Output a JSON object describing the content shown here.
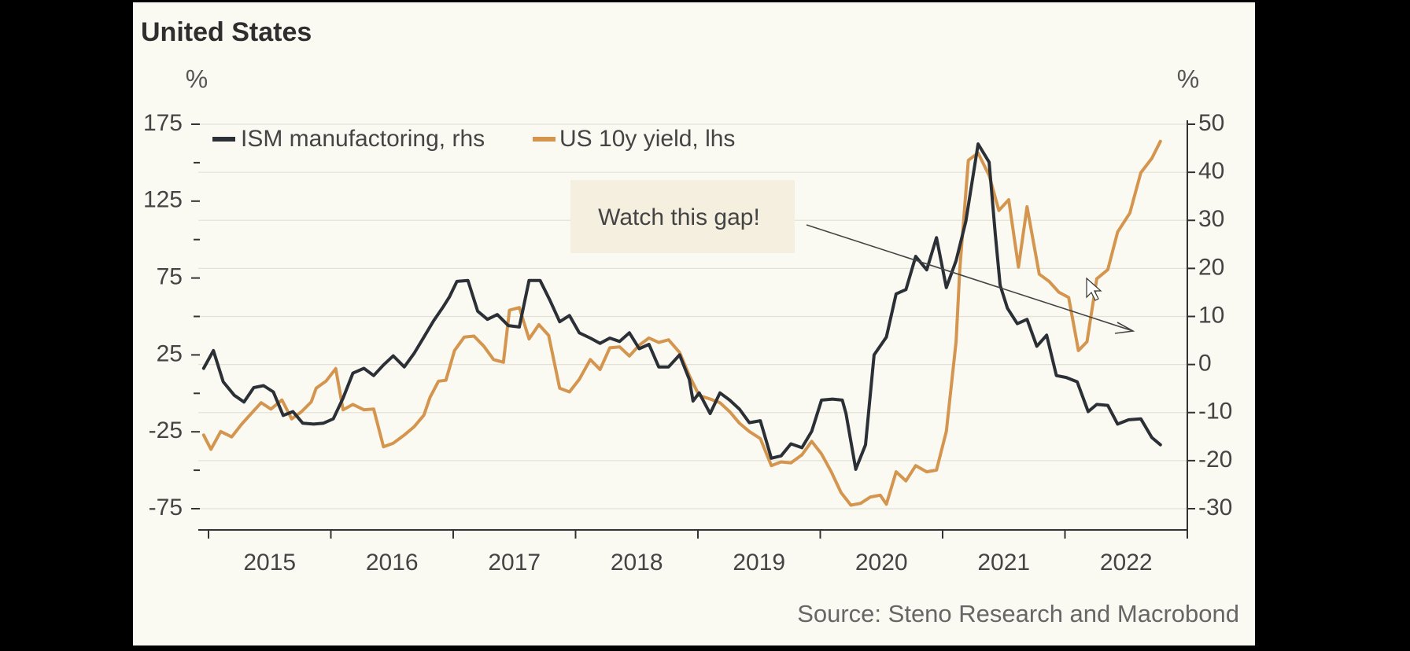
{
  "chart_data": {
    "type": "line",
    "title": "United States",
    "ylabel": "%",
    "y2label": "%",
    "annotation": "Watch this gap!",
    "source": "Source: Steno Research and Macrobond",
    "xlim": [
      2015,
      2023
    ],
    "xticks": [
      2015,
      2016,
      2017,
      2018,
      2019,
      2020,
      2021,
      2022,
      2023
    ],
    "xtick_labels": [
      "2015",
      "2016",
      "2017",
      "2018",
      "2019",
      "2020",
      "2021",
      "2022"
    ],
    "ylim": [
      -75,
      175
    ],
    "yticks": [
      -75,
      -25,
      25,
      75,
      125,
      175
    ],
    "yminorticks": [
      -50,
      0,
      50,
      100,
      150
    ],
    "y2lim": [
      -30,
      50
    ],
    "y2ticks": [
      -30,
      -20,
      -10,
      0,
      10,
      20,
      30,
      40,
      50
    ],
    "grid": "y2",
    "series": [
      {
        "name": "ISM manufactoring, rhs",
        "color": "#2b2f36",
        "axis": "y2",
        "x": [
          2014.96,
          2015.04,
          2015.12,
          2015.21,
          2015.29,
          2015.37,
          2015.45,
          2015.53,
          2015.61,
          2015.69,
          2015.77,
          2015.86,
          2015.94,
          2016.02,
          2016.1,
          2016.18,
          2016.27,
          2016.35,
          2016.43,
          2016.51,
          2016.6,
          2016.68,
          2016.76,
          2016.84,
          2016.92,
          2016.97,
          2017.03,
          2017.12,
          2017.2,
          2017.28,
          2017.36,
          2017.45,
          2017.54,
          2017.62,
          2017.71,
          2017.79,
          2017.87,
          2017.95,
          2018.03,
          2018.12,
          2018.2,
          2018.28,
          2018.36,
          2018.44,
          2018.52,
          2018.6,
          2018.68,
          2018.76,
          2018.85,
          2018.93,
          2018.96,
          2019.01,
          2019.1,
          2019.18,
          2019.26,
          2019.34,
          2019.42,
          2019.51,
          2019.6,
          2019.68,
          2019.76,
          2019.85,
          2019.93,
          2020.01,
          2020.1,
          2020.18,
          2020.21,
          2020.29,
          2020.37,
          2020.44,
          2020.54,
          2020.62,
          2020.7,
          2020.78,
          2020.87,
          2020.95,
          2021.03,
          2021.11,
          2021.19,
          2021.29,
          2021.38,
          2021.43,
          2021.47,
          2021.53,
          2021.61,
          2021.69,
          2021.77,
          2021.85,
          2021.93,
          2022.01,
          2022.1,
          2022.19,
          2022.26,
          2022.35,
          2022.43,
          2022.52,
          2022.62,
          2022.71,
          2022.78
        ],
        "values": [
          -0.8,
          2.9,
          -3.6,
          -6.4,
          -7.8,
          -4.8,
          -4.4,
          -5.7,
          -10.6,
          -9.8,
          -12.2,
          -12.4,
          -12.2,
          -11.3,
          -7.0,
          -1.8,
          -0.8,
          -2.3,
          -0.1,
          1.8,
          -0.5,
          2.3,
          5.7,
          9.1,
          12.1,
          14.1,
          17.3,
          17.5,
          11.1,
          9.4,
          10.4,
          8.1,
          7.8,
          17.5,
          17.5,
          13.4,
          8.9,
          10.2,
          6.6,
          5.5,
          4.4,
          5.5,
          4.8,
          6.6,
          3.3,
          4.2,
          -0.5,
          -0.5,
          2.0,
          -3.1,
          -7.6,
          -5.9,
          -10.2,
          -5.9,
          -7.4,
          -9.3,
          -12.1,
          -11.7,
          -19.5,
          -19.0,
          -16.5,
          -17.3,
          -13.9,
          -7.4,
          -7.2,
          -7.4,
          -10.2,
          -21.8,
          -16.7,
          2.0,
          5.7,
          14.7,
          15.6,
          22.5,
          19.7,
          26.4,
          16.0,
          21.6,
          29.8,
          45.9,
          42.1,
          27.2,
          16.5,
          11.7,
          8.5,
          9.4,
          3.8,
          6.1,
          -2.3,
          -2.7,
          -3.6,
          -9.8,
          -8.3,
          -8.5,
          -12.4,
          -11.5,
          -11.3,
          -15.2,
          -16.7
        ]
      },
      {
        "name": "US 10y yield, lhs",
        "color": "#d4954f",
        "x": [
          2014.96,
          2015.02,
          2015.1,
          2015.19,
          2015.27,
          2015.35,
          2015.43,
          2015.51,
          2015.6,
          2015.68,
          2015.76,
          2015.84,
          2015.88,
          2015.96,
          2016.04,
          2016.1,
          2016.18,
          2016.27,
          2016.35,
          2016.43,
          2016.51,
          2016.6,
          2016.68,
          2016.76,
          2016.81,
          2016.88,
          2016.94,
          2017.01,
          2017.09,
          2017.17,
          2017.25,
          2017.33,
          2017.41,
          2017.46,
          2017.54,
          2017.62,
          2017.7,
          2017.78,
          2017.87,
          2017.95,
          2018.03,
          2018.12,
          2018.2,
          2018.28,
          2018.36,
          2018.44,
          2018.52,
          2018.6,
          2018.68,
          2018.76,
          2018.85,
          2018.93,
          2019.01,
          2019.1,
          2019.18,
          2019.26,
          2019.34,
          2019.42,
          2019.51,
          2019.6,
          2019.68,
          2019.76,
          2019.85,
          2019.93,
          2020.01,
          2020.09,
          2020.17,
          2020.25,
          2020.33,
          2020.41,
          2020.49,
          2020.54,
          2020.62,
          2020.7,
          2020.78,
          2020.87,
          2020.95,
          2021.03,
          2021.11,
          2021.14,
          2021.21,
          2021.29,
          2021.38,
          2021.46,
          2021.54,
          2021.62,
          2021.69,
          2021.79,
          2021.87,
          2021.95,
          2022.03,
          2022.11,
          2022.18,
          2022.26,
          2022.35,
          2022.43,
          2022.53,
          2022.62,
          2022.71,
          2022.78
        ],
        "values": [
          -27.1,
          -36.4,
          -24.8,
          -28.3,
          -20.1,
          -13.1,
          -6.1,
          -10.2,
          -4.3,
          -16.6,
          -11.9,
          -5.5,
          3.3,
          7.9,
          16.1,
          -10.7,
          -7.2,
          -10.7,
          -10.2,
          -34.7,
          -32.4,
          -27.1,
          -21.8,
          -14.2,
          -2.6,
          7.9,
          8.5,
          27.8,
          36.6,
          37.2,
          30.7,
          22.0,
          20.2,
          54.1,
          55.8,
          35.4,
          44.7,
          37.7,
          3.3,
          0.9,
          9.1,
          22.0,
          15.5,
          29.6,
          30.2,
          24.3,
          31.3,
          36.0,
          33.1,
          34.8,
          26.6,
          11.5,
          -1.4,
          -3.7,
          -6.1,
          -11.9,
          -19.5,
          -24.8,
          -29.4,
          -47.0,
          -44.6,
          -45.2,
          -40.0,
          -31.2,
          -39.4,
          -51.0,
          -64.5,
          -72.7,
          -71.5,
          -67.4,
          -66.2,
          -72.1,
          -51.0,
          -56.9,
          -47.0,
          -51.0,
          -49.9,
          -24.8,
          33.6,
          80.4,
          151.6,
          156.3,
          141.7,
          118.9,
          125.9,
          82.1,
          121.3,
          77.5,
          72.8,
          65.8,
          62.3,
          27.8,
          33.6,
          74.5,
          80.4,
          104.9,
          117.2,
          143.5,
          152.8,
          163.9
        ]
      }
    ]
  }
}
